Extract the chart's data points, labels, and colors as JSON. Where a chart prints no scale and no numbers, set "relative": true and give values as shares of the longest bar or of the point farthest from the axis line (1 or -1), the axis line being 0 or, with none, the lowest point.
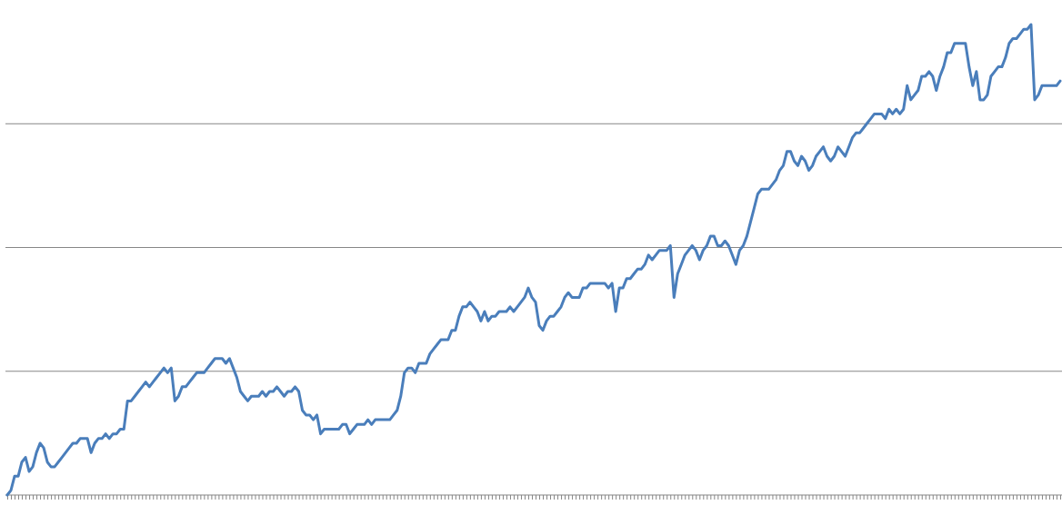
{
  "chart_data": {
    "type": "line",
    "relative": true,
    "grid": "y",
    "legend": false,
    "marker": "none",
    "line_style": "solid",
    "categories": [
      null,
      null,
      null,
      null,
      null,
      null,
      null,
      null,
      null,
      null,
      null,
      null,
      null,
      null,
      null,
      null,
      null,
      null,
      null,
      null,
      null,
      null,
      null,
      null,
      null,
      null,
      null,
      null,
      null,
      null,
      null,
      null,
      null,
      null,
      null,
      null,
      null,
      null,
      null,
      null,
      null,
      null,
      null,
      null,
      null,
      null,
      null,
      null,
      null,
      null,
      null,
      null,
      null,
      null,
      null,
      null,
      null,
      null,
      null,
      null,
      null,
      null,
      null,
      null,
      null,
      null,
      null,
      null,
      null,
      null,
      null,
      null,
      null,
      null,
      null,
      null,
      null,
      null,
      null,
      null,
      null,
      null,
      null,
      null,
      null,
      null,
      null,
      null,
      null,
      null,
      null,
      null,
      null,
      null,
      null,
      null,
      null,
      null,
      null,
      null,
      null,
      null,
      null,
      null,
      null,
      null,
      null,
      null,
      null,
      null,
      null,
      null,
      null,
      null,
      null,
      null,
      null,
      null,
      null,
      null,
      null,
      null,
      null,
      null,
      null,
      null,
      null,
      null,
      null,
      null,
      null,
      null,
      null,
      null,
      null,
      null,
      null,
      null,
      null,
      null,
      null,
      null,
      null,
      null,
      null,
      null,
      null,
      null,
      null,
      null,
      null,
      null,
      null,
      null,
      null,
      null,
      null,
      null,
      null,
      null,
      null,
      null,
      null,
      null,
      null,
      null,
      null,
      null,
      null,
      null,
      null,
      null,
      null,
      null,
      null,
      null,
      null,
      null,
      null,
      null,
      null,
      null,
      null,
      null,
      null,
      null,
      null,
      null,
      null,
      null,
      null,
      null,
      null,
      null,
      null,
      null,
      null,
      null,
      null,
      null,
      null,
      null,
      null,
      null,
      null,
      null,
      null,
      null,
      null,
      null,
      null,
      null,
      null,
      null,
      null,
      null,
      null,
      null,
      null,
      null,
      null,
      null,
      null,
      null,
      null,
      null,
      null,
      null,
      null,
      null,
      null,
      null,
      null,
      null,
      null,
      null,
      null,
      null,
      null,
      null,
      null,
      null,
      null,
      null,
      null,
      null,
      null,
      null,
      null,
      null,
      null,
      null,
      null,
      null,
      null,
      null,
      null,
      null,
      null,
      null,
      null,
      null,
      null,
      null,
      null,
      null,
      null,
      null,
      null,
      null,
      null,
      null,
      null,
      null,
      null,
      null,
      null,
      null,
      null,
      null,
      null,
      null,
      null,
      null,
      null,
      null,
      null,
      null,
      null,
      null
    ],
    "series": [
      {
        "color": "#4a7ebb",
        "values": [
          0,
          0.01,
          0.04,
          0.04,
          0.07,
          0.08,
          0.05,
          0.06,
          0.09,
          0.11,
          0.1,
          0.07,
          0.06,
          0.06,
          0.07,
          0.08,
          0.09,
          0.1,
          0.11,
          0.11,
          0.12,
          0.12,
          0.12,
          0.09,
          0.11,
          0.12,
          0.12,
          0.13,
          0.12,
          0.13,
          0.13,
          0.14,
          0.14,
          0.2,
          0.2,
          0.21,
          0.22,
          0.23,
          0.24,
          0.23,
          0.24,
          0.25,
          0.26,
          0.27,
          0.26,
          0.27,
          0.2,
          0.21,
          0.23,
          0.23,
          0.24,
          0.25,
          0.26,
          0.26,
          0.26,
          0.27,
          0.28,
          0.29,
          0.29,
          0.29,
          0.28,
          0.29,
          0.27,
          0.25,
          0.22,
          0.21,
          0.2,
          0.21,
          0.21,
          0.21,
          0.22,
          0.21,
          0.22,
          0.22,
          0.23,
          0.22,
          0.21,
          0.22,
          0.22,
          0.23,
          0.22,
          0.18,
          0.17,
          0.17,
          0.16,
          0.17,
          0.13,
          0.14,
          0.14,
          0.14,
          0.14,
          0.14,
          0.15,
          0.15,
          0.13,
          0.14,
          0.15,
          0.15,
          0.15,
          0.16,
          0.15,
          0.16,
          0.16,
          0.16,
          0.16,
          0.16,
          0.17,
          0.18,
          0.21,
          0.26,
          0.27,
          0.27,
          0.26,
          0.28,
          0.28,
          0.28,
          0.3,
          0.31,
          0.32,
          0.33,
          0.33,
          0.33,
          0.35,
          0.35,
          0.38,
          0.4,
          0.4,
          0.41,
          0.4,
          0.39,
          0.37,
          0.39,
          0.37,
          0.38,
          0.38,
          0.39,
          0.39,
          0.39,
          0.4,
          0.39,
          0.4,
          0.41,
          0.42,
          0.44,
          0.42,
          0.41,
          0.36,
          0.35,
          0.37,
          0.38,
          0.38,
          0.39,
          0.4,
          0.42,
          0.43,
          0.42,
          0.42,
          0.42,
          0.44,
          0.44,
          0.45,
          0.45,
          0.45,
          0.45,
          0.45,
          0.44,
          0.45,
          0.39,
          0.44,
          0.44,
          0.46,
          0.46,
          0.47,
          0.48,
          0.48,
          0.49,
          0.51,
          0.5,
          0.51,
          0.52,
          0.52,
          0.52,
          0.53,
          0.42,
          0.47,
          0.49,
          0.51,
          0.52,
          0.53,
          0.52,
          0.5,
          0.52,
          0.53,
          0.55,
          0.55,
          0.53,
          0.53,
          0.54,
          0.53,
          0.51,
          0.49,
          0.52,
          0.53,
          0.55,
          0.58,
          0.61,
          0.64,
          0.65,
          0.65,
          0.65,
          0.66,
          0.67,
          0.69,
          0.7,
          0.73,
          0.73,
          0.71,
          0.7,
          0.72,
          0.71,
          0.69,
          0.7,
          0.72,
          0.73,
          0.74,
          0.72,
          0.71,
          0.72,
          0.74,
          0.73,
          0.72,
          0.74,
          0.76,
          0.77,
          0.77,
          0.78,
          0.79,
          0.8,
          0.81,
          0.81,
          0.81,
          0.8,
          0.82,
          0.81,
          0.82,
          0.81,
          0.82,
          0.87,
          0.84,
          0.85,
          0.86,
          0.89,
          0.89,
          0.9,
          0.89,
          0.86,
          0.89,
          0.91,
          0.94,
          0.94,
          0.96,
          0.96,
          0.96,
          0.96,
          0.91,
          0.87,
          0.9,
          0.84,
          0.84,
          0.85,
          0.89,
          0.9,
          0.91,
          0.91,
          0.93,
          0.96,
          0.97,
          0.97,
          0.98,
          0.99,
          0.99,
          1,
          0.84,
          0.85,
          0.87,
          0.87,
          0.87,
          0.87,
          0.87,
          0.88
        ]
      }
    ]
  }
}
